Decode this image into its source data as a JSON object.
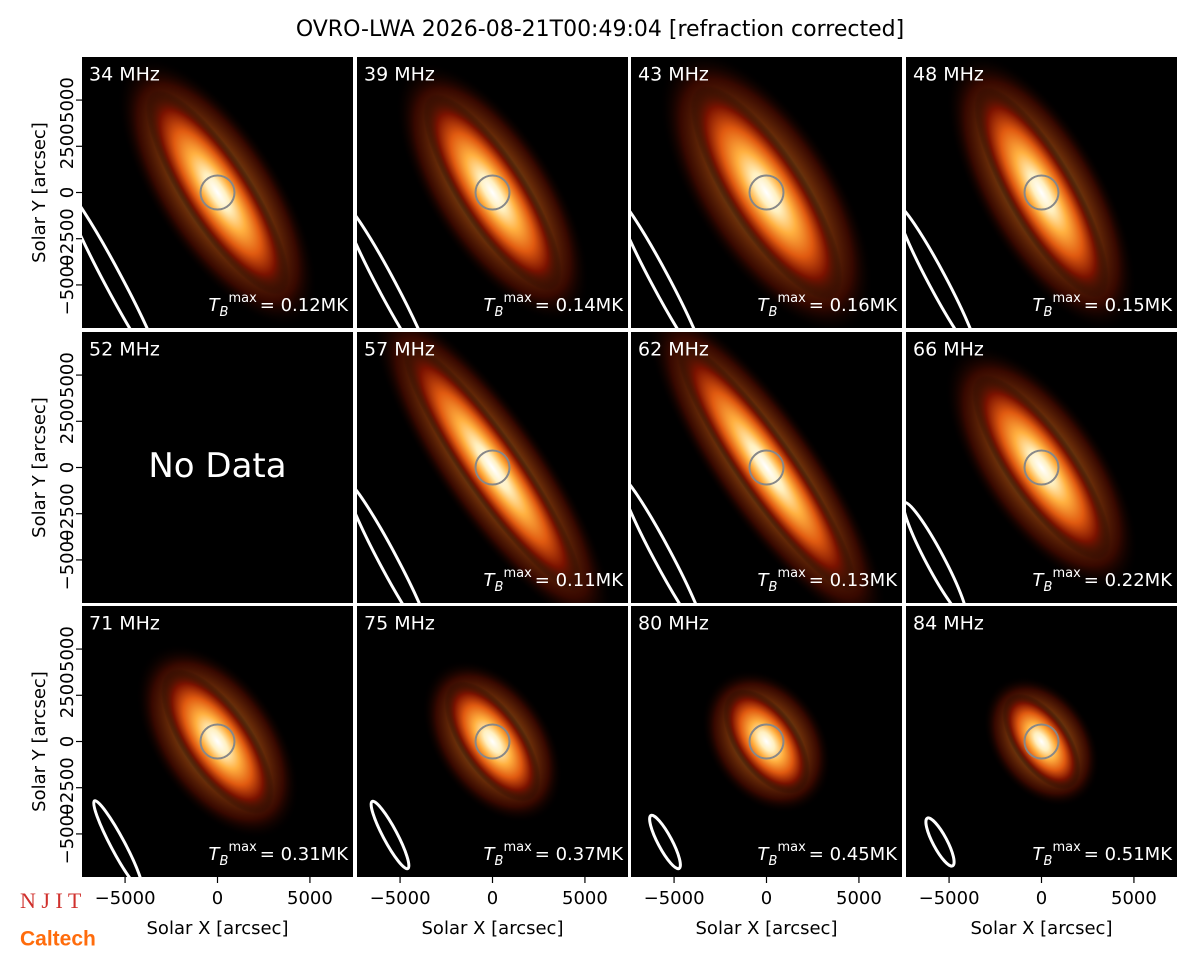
{
  "title": "OVRO-LWA 2026-08-21T00:49:04 [refraction corrected]",
  "xlabel": "Solar X [arcsec]",
  "ylabel": "Solar Y [arcsec]",
  "xlim": [
    -7330,
    7330
  ],
  "ylim": [
    -7330,
    7330
  ],
  "xticks": [
    {
      "value": -5000,
      "label": "−5000"
    },
    0,
    5000
  ],
  "yticks": [
    {
      "value": -5000,
      "label": "−5000"
    },
    {
      "value": -2500,
      "label": "−2500"
    },
    0,
    2500,
    5000
  ],
  "tb_symbol": "T",
  "tb_sub": "B",
  "tb_sup": "max",
  "panels": [
    {
      "freq": "34 MHz",
      "tb": "= 0.12MK"
    },
    {
      "freq": "39 MHz",
      "tb": "= 0.14MK"
    },
    {
      "freq": "43 MHz",
      "tb": "= 0.16MK"
    },
    {
      "freq": "48 MHz",
      "tb": "= 0.15MK"
    },
    {
      "freq": "52 MHz",
      "note": "No Data"
    },
    {
      "freq": "57 MHz",
      "tb": "= 0.11MK"
    },
    {
      "freq": "62 MHz",
      "tb": "= 0.13MK"
    },
    {
      "freq": "66 MHz",
      "tb": "= 0.22MK"
    },
    {
      "freq": "71 MHz",
      "tb": "= 0.31MK"
    },
    {
      "freq": "75 MHz",
      "tb": "= 0.37MK"
    },
    {
      "freq": "80 MHz",
      "tb": "= 0.45MK"
    },
    {
      "freq": "84 MHz",
      "tb": "= 0.51MK"
    }
  ],
  "logos": [
    "N J I T",
    "Caltech"
  ]
}
